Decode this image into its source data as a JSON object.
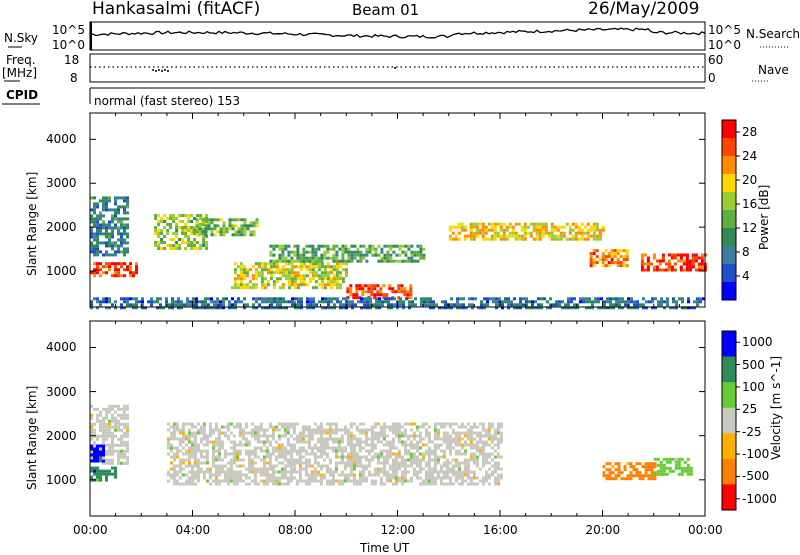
{
  "header": {
    "station": "Hankasalmi (fitACF)",
    "beam": "Beam 01",
    "date": "26/May/2009"
  },
  "summary_panels": {
    "nsky_label": "N.Sky",
    "nsky_ticks": [
      "10^5",
      "10^0"
    ],
    "nsearch_label": "N.Search",
    "nsearch_ticks": [
      "10^5",
      "10^0"
    ],
    "freq_label_1": "Freq.",
    "freq_label_2": "[MHz]",
    "freq_ticks": [
      "18",
      "8"
    ],
    "nave_label": "Nave",
    "nave_ticks": [
      "60",
      "0"
    ],
    "cpid_label": "CPID",
    "cpid_text": "normal (fast stereo) 153"
  },
  "colors": {
    "power_scale": [
      "#0000ff",
      "#1f4fc8",
      "#3b7fa0",
      "#2e8b57",
      "#5fae3f",
      "#9acd32",
      "#ffd700",
      "#ff8c00",
      "#ff4500",
      "#ff0000"
    ],
    "velocity_scale": [
      "#0000ff",
      "#2e8b57",
      "#66cc33",
      "#c8c8c0",
      "#ffb000",
      "#ff8000",
      "#ff0000"
    ],
    "ground_scatter": "#b8b8b0"
  },
  "chart_data": [
    {
      "type": "heatmap",
      "title": "",
      "xlabel": "Time UT",
      "ylabel": "Slant Range [km]",
      "xlim_hours": [
        0,
        24
      ],
      "ylim_km": [
        180,
        4600
      ],
      "x_ticks": [
        "00:00",
        "04:00",
        "08:00",
        "12:00",
        "16:00",
        "20:00",
        "00:00"
      ],
      "y_ticks": [
        1000,
        2000,
        3000,
        4000
      ],
      "colorbar": {
        "label": "Power [dB]",
        "ticks": [
          4,
          8,
          12,
          16,
          20,
          24,
          28
        ],
        "range": [
          0,
          30
        ]
      },
      "regions_time_hours_range_km": [
        {
          "t": [
            0.0,
            1.5
          ],
          "r": [
            1400,
            2700
          ],
          "power": 8
        },
        {
          "t": [
            0.0,
            1.8
          ],
          "r": [
            900,
            1200
          ],
          "power": 27
        },
        {
          "t": [
            2.5,
            4.5
          ],
          "r": [
            1500,
            2300
          ],
          "power": 16
        },
        {
          "t": [
            4.0,
            6.5
          ],
          "r": [
            1800,
            2200
          ],
          "power": 14
        },
        {
          "t": [
            5.5,
            10.0
          ],
          "r": [
            600,
            1200
          ],
          "power": 18
        },
        {
          "t": [
            10.0,
            12.5
          ],
          "r": [
            400,
            700
          ],
          "power": 28
        },
        {
          "t": [
            7.0,
            13.0
          ],
          "r": [
            1200,
            1600
          ],
          "power": 12
        },
        {
          "t": [
            14.0,
            20.0
          ],
          "r": [
            1700,
            2100
          ],
          "power": 20
        },
        {
          "t": [
            19.5,
            21.0
          ],
          "r": [
            1100,
            1500
          ],
          "power": 24
        },
        {
          "t": [
            21.5,
            24.0
          ],
          "r": [
            1000,
            1400
          ],
          "power": 28
        },
        {
          "t": [
            0.0,
            24.0
          ],
          "r": [
            180,
            400
          ],
          "power": 6
        }
      ]
    },
    {
      "type": "heatmap",
      "title": "",
      "xlabel": "Time UT",
      "ylabel": "Slant Range [km]",
      "xlim_hours": [
        0,
        24
      ],
      "ylim_km": [
        180,
        4600
      ],
      "x_ticks": [
        "00:00",
        "04:00",
        "08:00",
        "12:00",
        "16:00",
        "20:00",
        "00:00"
      ],
      "y_ticks": [
        1000,
        2000,
        3000,
        4000
      ],
      "colorbar": {
        "label": "Velocity [m s^-1]",
        "ticks": [
          "1000",
          "500",
          "100",
          "25",
          "-25",
          "-100",
          "-500",
          "-1000"
        ]
      },
      "regions_time_hours_range_km": [
        {
          "t": [
            0.0,
            1.5
          ],
          "r": [
            1400,
            2700
          ],
          "velocity": 0
        },
        {
          "t": [
            0.0,
            1.0
          ],
          "r": [
            1000,
            1300
          ],
          "velocity": 150
        },
        {
          "t": [
            0.0,
            0.5
          ],
          "r": [
            1400,
            1800
          ],
          "velocity": 600
        },
        {
          "t": [
            3.0,
            16.0
          ],
          "r": [
            900,
            2300
          ],
          "velocity": 0
        },
        {
          "t": [
            20.0,
            22.0
          ],
          "r": [
            1000,
            1400
          ],
          "velocity": -200
        },
        {
          "t": [
            22.0,
            23.5
          ],
          "r": [
            1100,
            1500
          ],
          "velocity": 100
        }
      ]
    }
  ]
}
